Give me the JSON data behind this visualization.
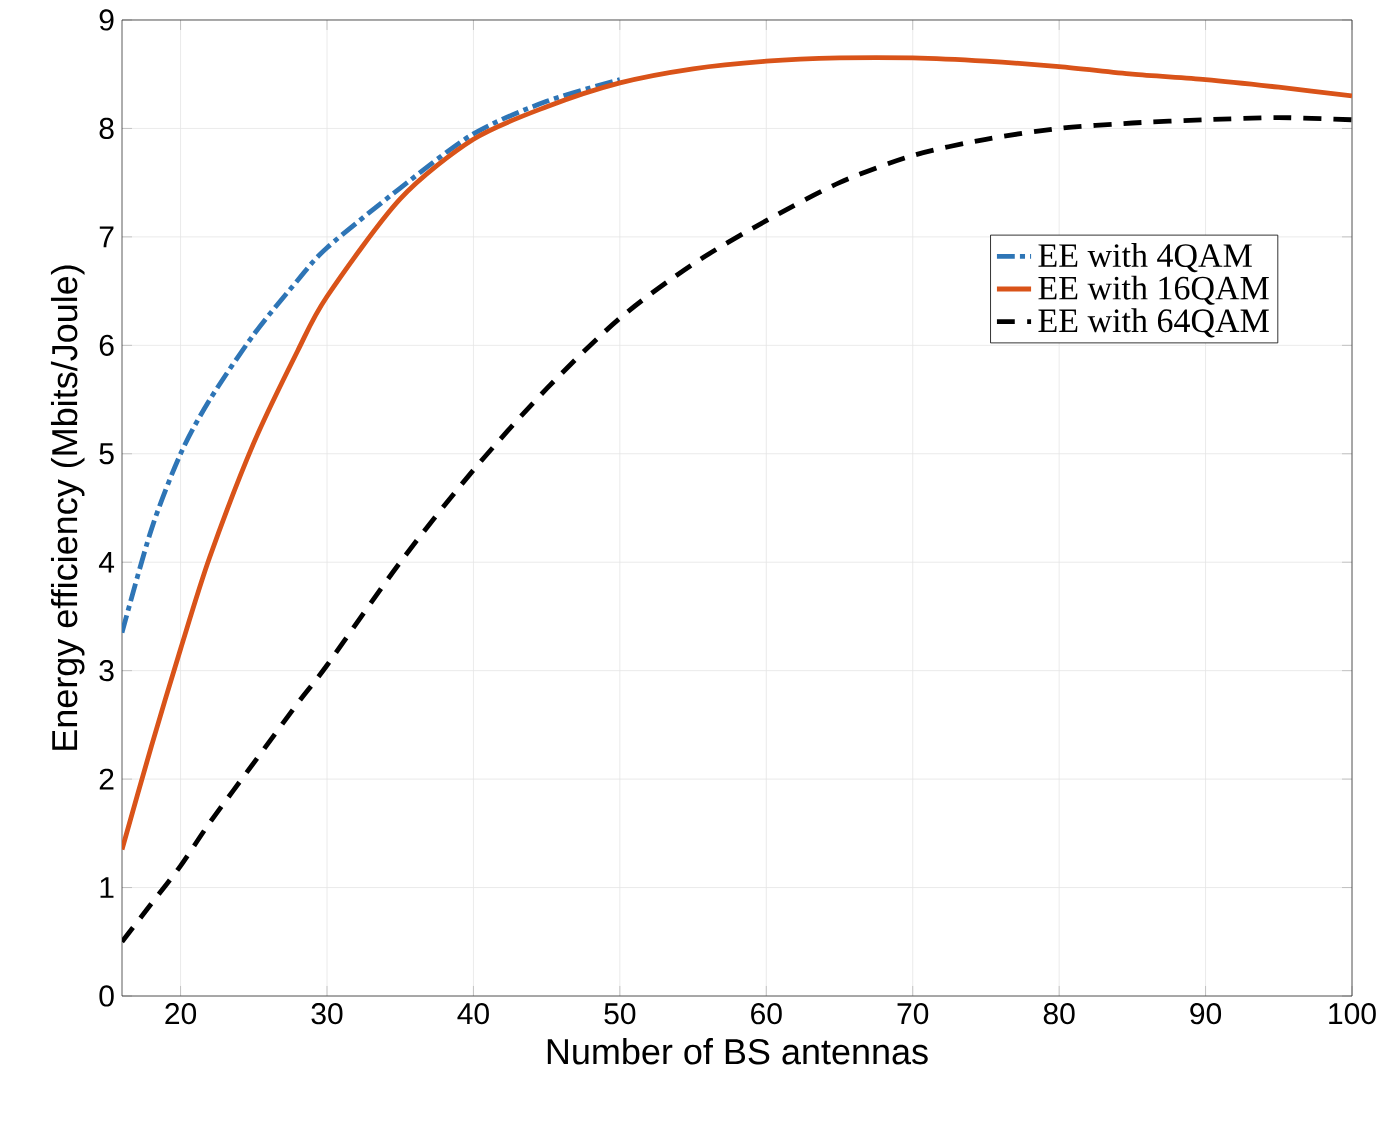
{
  "chart_data": {
    "type": "line",
    "xlabel": "Number of BS antennas",
    "ylabel": "Energy efficiency (Mbits/Joule)",
    "x": [
      16,
      18,
      20,
      22,
      25,
      28,
      30,
      35,
      40,
      45,
      50,
      55,
      60,
      65,
      70,
      75,
      80,
      85,
      90,
      95,
      100
    ],
    "series": [
      {
        "name": "EE with 4QAM",
        "color": "#2e75b6",
        "line_style": "dashdot",
        "values": [
          3.35,
          4.3,
          5.0,
          5.5,
          6.1,
          6.6,
          6.9,
          7.45,
          7.95,
          8.25,
          8.45,
          null,
          null,
          null,
          null,
          null,
          null,
          null,
          null,
          null,
          null
        ]
      },
      {
        "name": "EE with 16QAM",
        "color": "#d95319",
        "line_style": "solid",
        "values": [
          1.35,
          2.3,
          3.2,
          4.05,
          5.1,
          5.95,
          6.45,
          7.35,
          7.9,
          8.2,
          8.42,
          8.55,
          8.62,
          8.65,
          8.65,
          8.62,
          8.57,
          8.5,
          8.45,
          8.38,
          8.3
        ]
      },
      {
        "name": "EE with 64QAM",
        "color": "#000000",
        "line_style": "dashed",
        "values": [
          0.5,
          0.85,
          1.2,
          1.6,
          2.15,
          2.7,
          3.05,
          4.0,
          4.85,
          5.6,
          6.25,
          6.75,
          7.15,
          7.5,
          7.75,
          7.9,
          8.0,
          8.05,
          8.08,
          8.1,
          8.08
        ]
      }
    ],
    "xlim": [
      16,
      100
    ],
    "xticks": [
      20,
      30,
      40,
      50,
      60,
      70,
      80,
      90,
      100
    ],
    "ylim": [
      0,
      9
    ],
    "yticks": [
      0,
      1,
      2,
      3,
      4,
      5,
      6,
      7,
      8,
      9
    ],
    "grid": true,
    "legend": "right",
    "marker": "none"
  }
}
